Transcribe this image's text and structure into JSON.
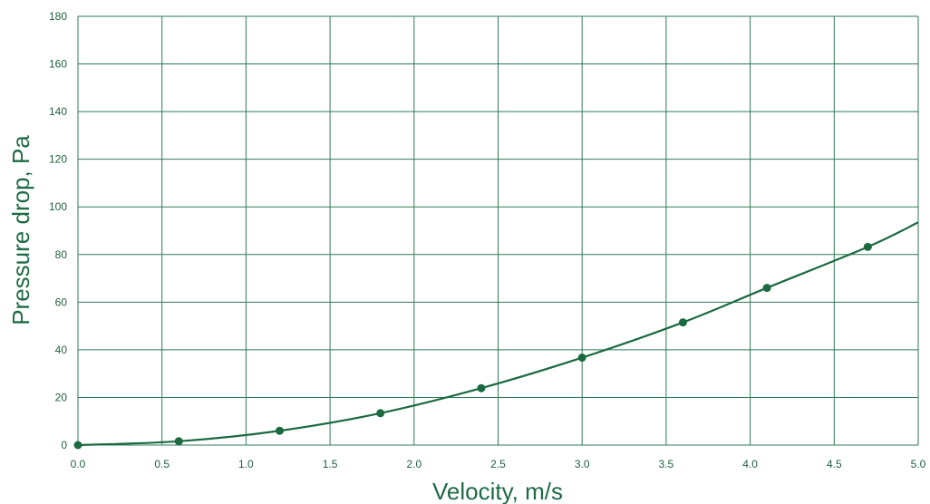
{
  "chart_data": {
    "type": "line",
    "title": "",
    "xlabel": "Velocity, m/s",
    "ylabel": "Pressure drop, Pa",
    "xlim": [
      0,
      5
    ],
    "ylim": [
      0,
      180
    ],
    "x_ticks": [
      "0.0",
      "0.5",
      "1.0",
      "1.5",
      "2.0",
      "2.5",
      "3.0",
      "3.5",
      "4.0",
      "4.5",
      "5.0"
    ],
    "y_ticks": [
      "0",
      "20",
      "40",
      "60",
      "80",
      "100",
      "120",
      "140",
      "160",
      "180"
    ],
    "grid": true,
    "legend": "none",
    "colors": {
      "grid": "#2f7a57",
      "series": "#1b6a3f",
      "text": "#1f5f3c",
      "title_text": "#1e6b45"
    },
    "series": [
      {
        "points": [
          {
            "x": 0.0,
            "y": 0.0
          },
          {
            "x": 0.6,
            "y": 1.6
          },
          {
            "x": 1.2,
            "y": 6.0
          },
          {
            "x": 1.8,
            "y": 13.4
          },
          {
            "x": 2.4,
            "y": 23.9
          },
          {
            "x": 3.0,
            "y": 36.7
          },
          {
            "x": 3.6,
            "y": 51.5
          },
          {
            "x": 4.1,
            "y": 66.0
          },
          {
            "x": 4.7,
            "y": 83.2
          }
        ],
        "curve_extends_to": {
          "x": 5.0,
          "y": 93.5
        }
      }
    ]
  }
}
